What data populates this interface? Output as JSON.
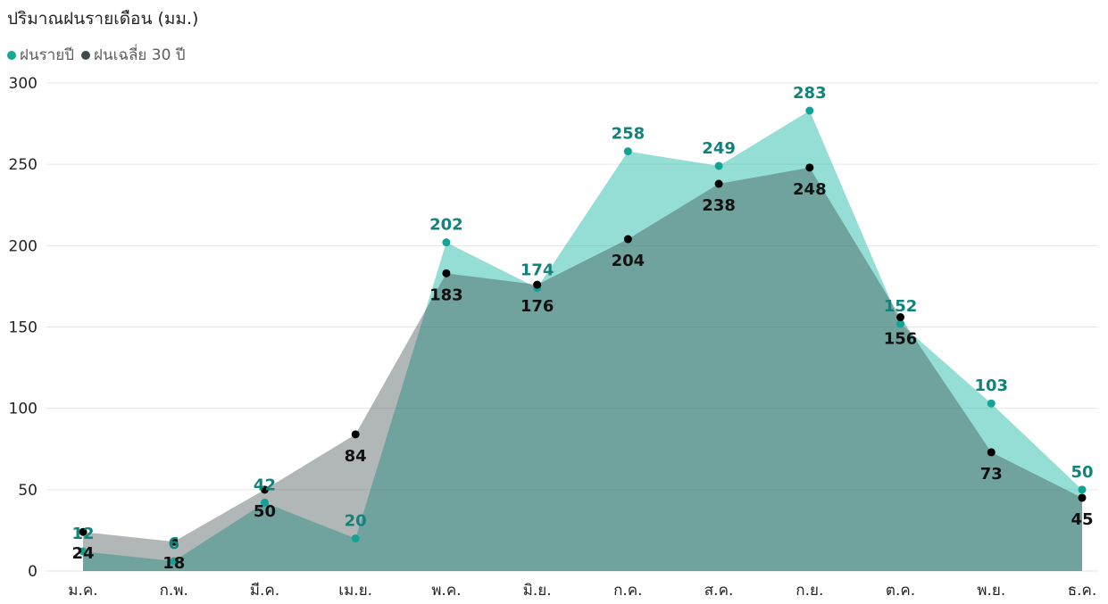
{
  "chart_data": {
    "type": "area",
    "title": "ปริมาณฝนรายเดือน (มม.)",
    "categories": [
      "ม.ค.",
      "ก.พ.",
      "มี.ค.",
      "เม.ย.",
      "พ.ค.",
      "มิ.ย.",
      "ก.ค.",
      "ส.ค.",
      "ก.ย.",
      "ต.ค.",
      "พ.ย.",
      "ธ.ค."
    ],
    "series": [
      {
        "name": "ฝนรายปี",
        "values": [
          12,
          6,
          42,
          20,
          202,
          174,
          258,
          249,
          283,
          152,
          103,
          50
        ],
        "color": "#14a899",
        "label_color": "#11837a"
      },
      {
        "name": "ฝนเฉลี่ย 30 ปี",
        "values": [
          24,
          18,
          50,
          84,
          183,
          176,
          204,
          238,
          248,
          156,
          73,
          45
        ],
        "color": "#3b4a4b",
        "label_color": "#111111"
      }
    ],
    "y_ticks": [
      0,
      50,
      100,
      150,
      200,
      250,
      300
    ],
    "ylim": [
      0,
      300
    ],
    "grid": true,
    "legend_position": "top-left",
    "data_labels": true
  }
}
